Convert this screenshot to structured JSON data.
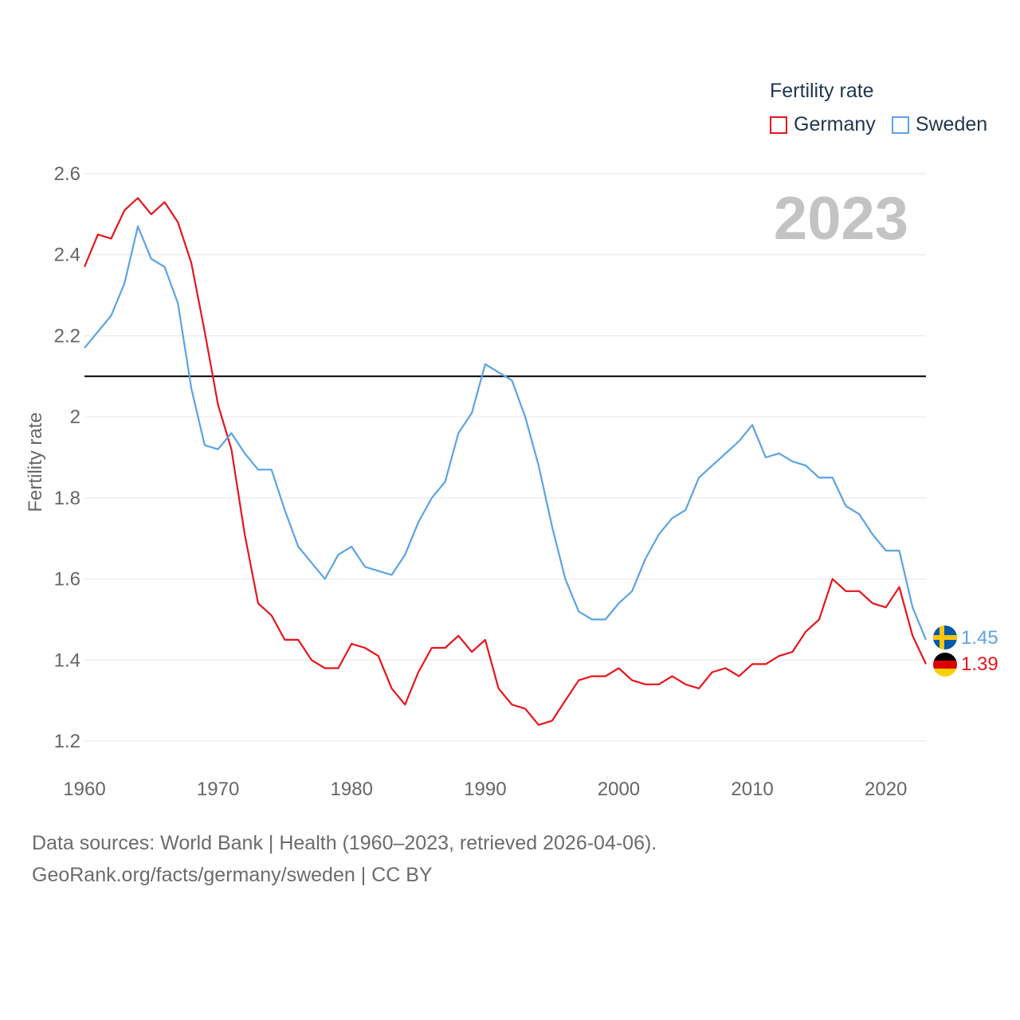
{
  "chart_data": {
    "type": "line",
    "ylabel": "Fertility rate",
    "ylim": [
      1.2,
      2.6
    ],
    "xlim": [
      1960,
      2023
    ],
    "yticks": [
      "1.2",
      "1.4",
      "1.6",
      "1.8",
      "2",
      "2.2",
      "2.4",
      "2.6"
    ],
    "xticks": [
      "1960",
      "1970",
      "1980",
      "1990",
      "2000",
      "2010",
      "2020"
    ],
    "year_label": "2023",
    "reference_line": 2.1,
    "legend": {
      "title": "Fertility rate",
      "position": "top-right"
    },
    "x": [
      1960,
      1961,
      1962,
      1963,
      1964,
      1965,
      1966,
      1967,
      1968,
      1969,
      1970,
      1971,
      1972,
      1973,
      1974,
      1975,
      1976,
      1977,
      1978,
      1979,
      1980,
      1981,
      1982,
      1983,
      1984,
      1985,
      1986,
      1987,
      1988,
      1989,
      1990,
      1991,
      1992,
      1993,
      1994,
      1995,
      1996,
      1997,
      1998,
      1999,
      2000,
      2001,
      2002,
      2003,
      2004,
      2005,
      2006,
      2007,
      2008,
      2009,
      2010,
      2011,
      2012,
      2013,
      2014,
      2015,
      2016,
      2017,
      2018,
      2019,
      2020,
      2021,
      2022,
      2023
    ],
    "series": [
      {
        "name": "Germany",
        "color": "#e8141c",
        "end_label": "1.39",
        "values": [
          2.37,
          2.45,
          2.44,
          2.51,
          2.54,
          2.5,
          2.53,
          2.48,
          2.38,
          2.21,
          2.03,
          1.92,
          1.71,
          1.54,
          1.51,
          1.45,
          1.45,
          1.4,
          1.38,
          1.38,
          1.44,
          1.43,
          1.41,
          1.33,
          1.29,
          1.37,
          1.43,
          1.43,
          1.46,
          1.42,
          1.45,
          1.33,
          1.29,
          1.28,
          1.24,
          1.25,
          1.3,
          1.35,
          1.36,
          1.36,
          1.38,
          1.35,
          1.34,
          1.34,
          1.36,
          1.34,
          1.33,
          1.37,
          1.38,
          1.36,
          1.39,
          1.39,
          1.41,
          1.42,
          1.47,
          1.5,
          1.6,
          1.57,
          1.57,
          1.54,
          1.53,
          1.58,
          1.46,
          1.39
        ]
      },
      {
        "name": "Sweden",
        "color": "#5ba3e6",
        "end_label": "1.45",
        "values": [
          2.17,
          2.21,
          2.25,
          2.33,
          2.47,
          2.39,
          2.37,
          2.28,
          2.07,
          1.93,
          1.92,
          1.96,
          1.91,
          1.87,
          1.87,
          1.77,
          1.68,
          1.64,
          1.6,
          1.66,
          1.68,
          1.63,
          1.62,
          1.61,
          1.66,
          1.74,
          1.8,
          1.84,
          1.96,
          2.01,
          2.13,
          2.11,
          2.09,
          2.0,
          1.88,
          1.73,
          1.6,
          1.52,
          1.5,
          1.5,
          1.54,
          1.57,
          1.65,
          1.71,
          1.75,
          1.77,
          1.85,
          1.88,
          1.91,
          1.94,
          1.98,
          1.9,
          1.91,
          1.89,
          1.88,
          1.85,
          1.85,
          1.78,
          1.76,
          1.71,
          1.67,
          1.67,
          1.53,
          1.45
        ]
      }
    ]
  },
  "footer": {
    "line1": "Data sources: World Bank | Health (1960–2023, retrieved 2026-04-06).",
    "line2": "GeoRank.org/facts/germany/sweden | CC BY"
  }
}
